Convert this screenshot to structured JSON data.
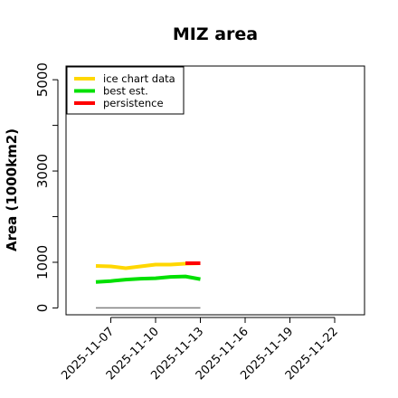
{
  "chart_data": {
    "type": "line",
    "title": "MIZ area",
    "xlabel": "",
    "ylabel": "Area (1000km2)",
    "xlim": [
      "2025-11-04",
      "2025-11-24"
    ],
    "ylim": [
      -150,
      5300
    ],
    "x_ticks": [
      "2025-11-07",
      "2025-11-10",
      "2025-11-13",
      "2025-11-16",
      "2025-11-19",
      "2025-11-22"
    ],
    "y_ticks": [
      0,
      1000,
      3000,
      5000
    ],
    "y_minor_ticks": [
      2000,
      4000
    ],
    "legend_position": "top-left",
    "grid": false,
    "baseline": {
      "x": [
        "2025-11-06",
        "2025-11-13"
      ],
      "y": [
        0,
        0
      ],
      "color": "#808080"
    },
    "series": [
      {
        "name": "ice chart data",
        "color": "#ffd700",
        "x": [
          "2025-11-06",
          "2025-11-07",
          "2025-11-08",
          "2025-11-09",
          "2025-11-10",
          "2025-11-11",
          "2025-11-12",
          "2025-11-13"
        ],
        "y": [
          920,
          910,
          870,
          910,
          950,
          950,
          970,
          980
        ]
      },
      {
        "name": "best est.",
        "color": "#00e000",
        "x": [
          "2025-11-06",
          "2025-11-07",
          "2025-11-08",
          "2025-11-09",
          "2025-11-10",
          "2025-11-11",
          "2025-11-12",
          "2025-11-13"
        ],
        "y": [
          570,
          590,
          620,
          640,
          650,
          680,
          690,
          630
        ]
      },
      {
        "name": "persistence",
        "color": "#ff0000",
        "x": [
          "2025-11-12",
          "2025-11-13"
        ],
        "y": [
          980,
          980
        ]
      }
    ]
  }
}
